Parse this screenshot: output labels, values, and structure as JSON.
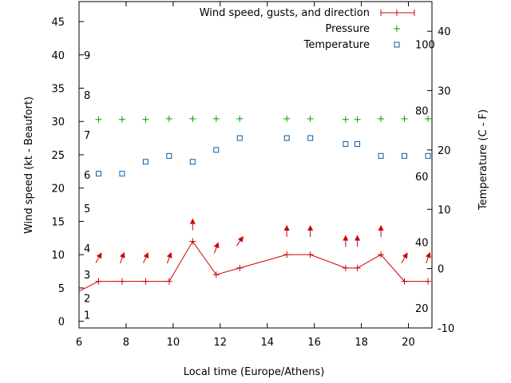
{
  "chart_data": {
    "type": "line",
    "xlabel": "Local time (Europe/Athens)",
    "ylabel": "Wind speed (kt - Beaufort)",
    "y2label": "Temperature (C - F)",
    "xlim": [
      6,
      21
    ],
    "ylim": [
      -1,
      48
    ],
    "y2lim": [
      -10,
      45
    ],
    "grid": false,
    "legend_position": "top-right",
    "x_ticks": [
      "6",
      "8",
      "10",
      "12",
      "14",
      "16",
      "18",
      "20"
    ],
    "y_ticks": [
      "0",
      "5",
      "10",
      "15",
      "20",
      "25",
      "30",
      "35",
      "40",
      "45"
    ],
    "y2_ticks": [
      "-10",
      "0",
      "10",
      "20",
      "30",
      "40"
    ],
    "beaufort_labels": [
      "1",
      "2",
      "3",
      "4",
      "5",
      "6",
      "7",
      "8",
      "9"
    ],
    "beaufort_values": [
      1,
      3.5,
      7,
      11,
      17,
      22,
      28,
      34,
      40
    ],
    "fahrenheit_labels": [
      "20",
      "40",
      "60",
      "80",
      "100"
    ],
    "fahrenheit_values": [
      20,
      40,
      60,
      80,
      100
    ],
    "series": [
      {
        "name": "Wind speed, gusts, and direction",
        "color": "#cc0000",
        "x": [
          6,
          6.83,
          7.83,
          8.83,
          9.83,
          10.83,
          11.83,
          12.83,
          14.83,
          15.83,
          17.33,
          17.83,
          18.83,
          19.83,
          20.83
        ],
        "y": [
          4.5,
          6,
          6,
          6,
          6,
          12,
          7,
          8,
          10,
          10,
          8,
          8,
          10,
          6,
          6
        ]
      },
      {
        "name": "Pressure",
        "color": "#00a000",
        "x": [
          6.83,
          7.83,
          8.83,
          9.83,
          10.83,
          11.83,
          12.83,
          14.83,
          15.83,
          17.33,
          17.83,
          18.83,
          19.83,
          20.83
        ],
        "y": [
          30.3,
          30.3,
          30.3,
          30.4,
          30.4,
          30.4,
          30.4,
          30.4,
          30.4,
          30.3,
          30.3,
          30.4,
          30.4,
          30.4
        ]
      },
      {
        "name": "Temperature",
        "color": "#0060ad",
        "axis": "right",
        "x": [
          6.83,
          7.83,
          8.83,
          9.83,
          10.83,
          11.83,
          12.83,
          14.83,
          15.83,
          17.33,
          17.83,
          18.83,
          19.83,
          20.83
        ],
        "y": [
          16,
          16,
          18,
          19,
          18,
          20,
          22,
          22,
          22,
          21,
          21,
          19,
          19,
          19
        ]
      }
    ],
    "direction_arrows": {
      "color": "#cc0000",
      "x": [
        6.83,
        7.83,
        8.83,
        9.83,
        10.83,
        11.83,
        12.83,
        14.83,
        15.83,
        17.33,
        17.83,
        18.83,
        19.83,
        20.83
      ],
      "y": [
        9.5,
        9.5,
        9.5,
        9.5,
        14.5,
        11,
        12,
        13.5,
        13.5,
        12,
        12,
        13.5,
        9.5,
        9.5
      ],
      "to_deg": [
        210,
        200,
        205,
        200,
        180,
        200,
        215,
        180,
        180,
        180,
        180,
        180,
        210,
        200
      ]
    }
  }
}
